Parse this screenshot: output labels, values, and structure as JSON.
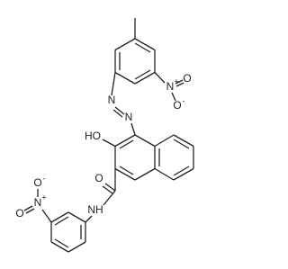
{
  "labels": [
    "N",
    "N",
    "HO",
    "O",
    "NH",
    "N",
    "O",
    "O",
    "N",
    "O",
    "O"
  ],
  "charges": [
    "+",
    "-",
    "+",
    "-"
  ]
}
